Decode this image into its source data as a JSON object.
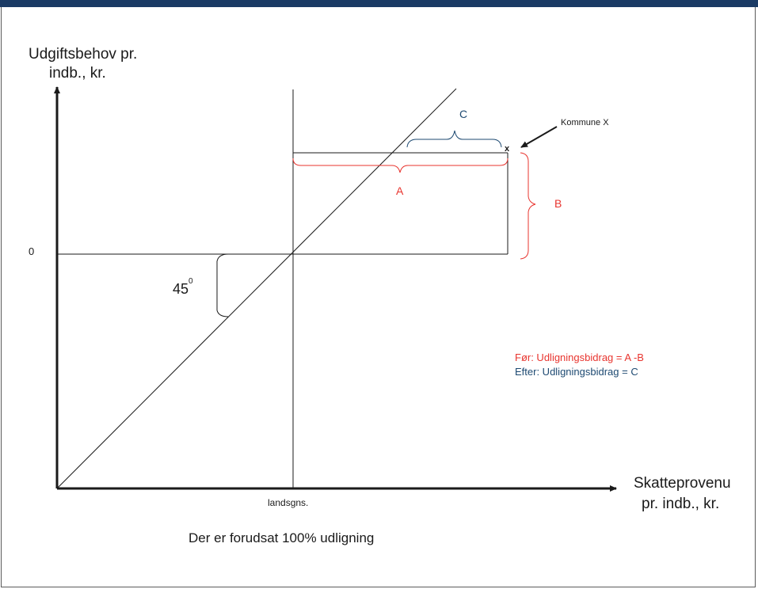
{
  "y_axis_label_line1": "Udgiftsbehov pr.",
  "y_axis_label_line2": "indb., kr.",
  "x_axis_label_line1": "Skatteprovenu",
  "x_axis_label_line2": "pr. indb., kr.",
  "zero_label": "0",
  "angle_label": "45",
  "angle_sup": "0",
  "landsgns_label": "landsgns.",
  "kommune_label": "Kommune X",
  "point_marker": "x",
  "brace_A": "A",
  "brace_B": "B",
  "brace_C": "C",
  "legend_foer": "Før: Udligningsbidrag = A  -B",
  "legend_efter": "Efter: Udligningsbidrag = C",
  "caption": "Der er forudsat 100% udligning",
  "colors": {
    "header": "#1a3a64",
    "red": "#e8342e",
    "blue": "#1e4a72",
    "line": "#1a1a1a"
  }
}
